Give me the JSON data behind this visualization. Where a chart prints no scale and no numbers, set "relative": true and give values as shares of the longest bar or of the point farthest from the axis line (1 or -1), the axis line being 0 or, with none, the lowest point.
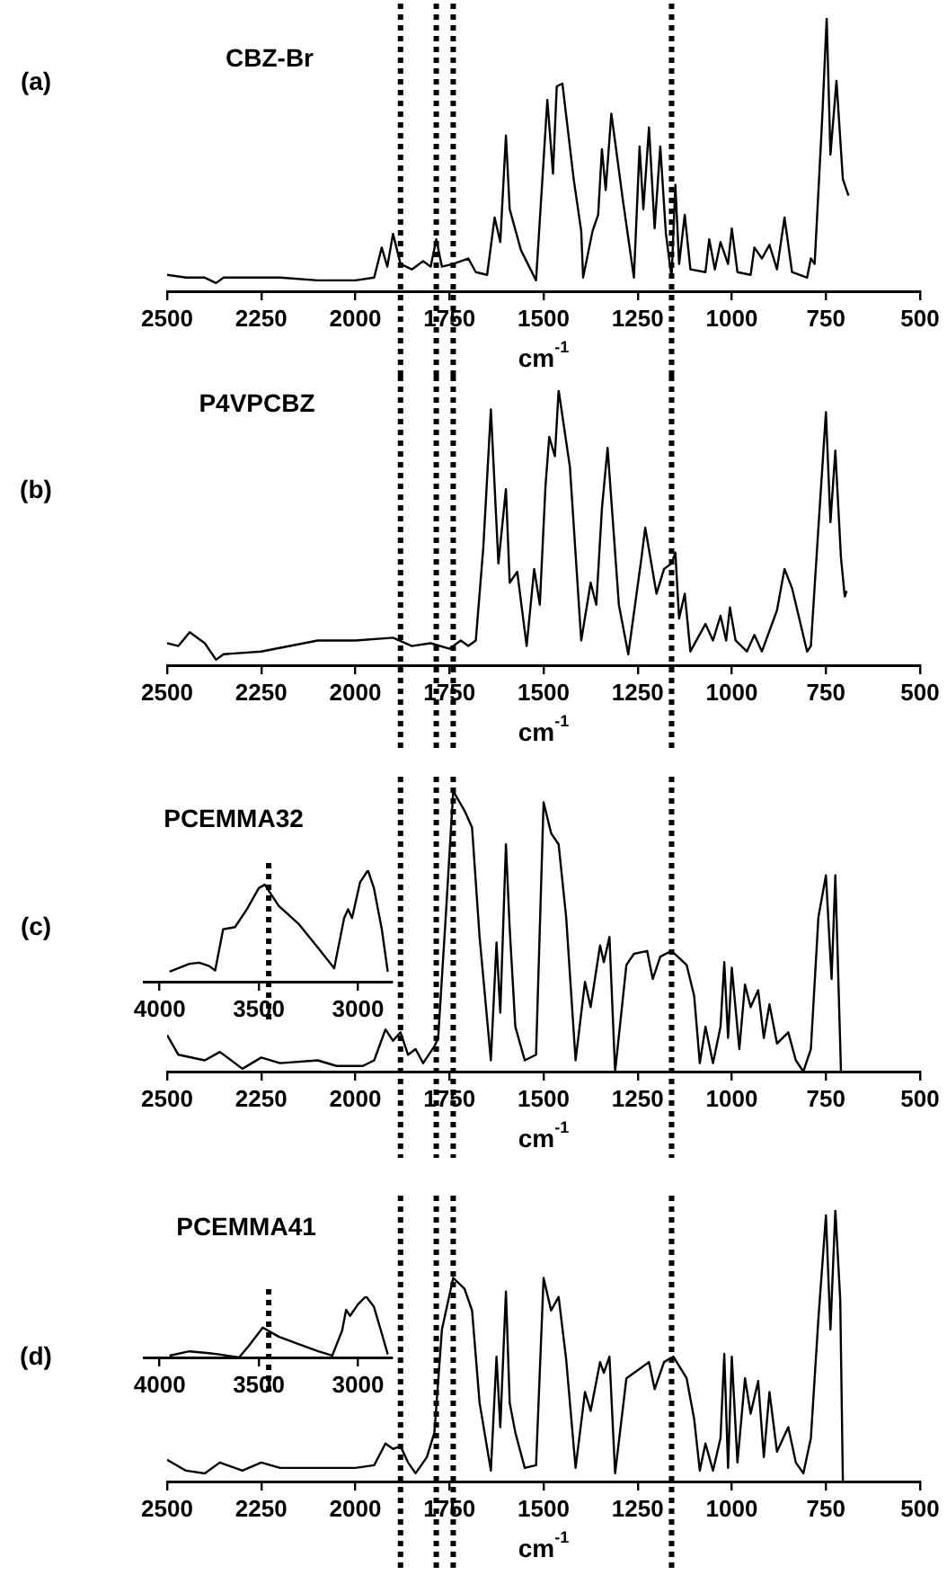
{
  "chart_data": [
    {
      "type": "line",
      "title": "CBZ-Br",
      "xlabel": "cm$^{-1}$",
      "annotations": [
        "(a)"
      ],
      "relative": true,
      "xlim": [
        2500,
        500
      ],
      "xticks": [
        2500,
        2250,
        2000,
        1750,
        1500,
        1250,
        1000,
        750,
        500
      ],
      "ref_lines": [
        {
          "axis": "x",
          "value": 1880,
          "line_style": "dotted",
          "color": "#000000"
        },
        {
          "axis": "x",
          "value": 1785,
          "line_style": "dotted",
          "color": "#000000"
        },
        {
          "axis": "x",
          "value": 1740,
          "line_style": "dotted",
          "color": "#000000"
        },
        {
          "axis": "x",
          "value": 1160,
          "line_style": "dotted",
          "color": "#000000"
        }
      ],
      "series": [
        {
          "color": "#000000",
          "x": [
            2500,
            2450,
            2400,
            2370,
            2350,
            2300,
            2200,
            2100,
            2000,
            1950,
            1930,
            1915,
            1900,
            1880,
            1850,
            1820,
            1800,
            1785,
            1770,
            1740,
            1700,
            1680,
            1650,
            1630,
            1615,
            1600,
            1590,
            1560,
            1520,
            1490,
            1475,
            1465,
            1450,
            1420,
            1400,
            1395,
            1370,
            1355,
            1345,
            1335,
            1320,
            1290,
            1260,
            1245,
            1235,
            1220,
            1205,
            1190,
            1175,
            1160,
            1150,
            1140,
            1125,
            1110,
            1070,
            1060,
            1045,
            1030,
            1010,
            1000,
            985,
            950,
            940,
            920,
            900,
            880,
            860,
            840,
            800,
            790,
            780,
            760,
            748,
            738,
            722,
            705,
            690
          ],
          "values": [
            0.06,
            0.05,
            0.05,
            0.03,
            0.05,
            0.05,
            0.05,
            0.04,
            0.04,
            0.05,
            0.16,
            0.09,
            0.21,
            0.1,
            0.08,
            0.11,
            0.09,
            0.19,
            0.09,
            0.1,
            0.12,
            0.07,
            0.06,
            0.27,
            0.18,
            0.57,
            0.3,
            0.15,
            0.04,
            0.7,
            0.43,
            0.75,
            0.76,
            0.41,
            0.22,
            0.05,
            0.22,
            0.28,
            0.52,
            0.37,
            0.65,
            0.34,
            0.05,
            0.53,
            0.3,
            0.6,
            0.23,
            0.53,
            0.21,
            0.05,
            0.39,
            0.1,
            0.28,
            0.08,
            0.07,
            0.19,
            0.08,
            0.18,
            0.1,
            0.23,
            0.07,
            0.06,
            0.16,
            0.12,
            0.17,
            0.08,
            0.27,
            0.07,
            0.05,
            0.12,
            0.1,
            0.63,
            1,
            0.5,
            0.77,
            0.41,
            0.35
          ]
        }
      ]
    },
    {
      "type": "line",
      "title": "P4VPCBZ",
      "xlabel": "cm$^{-1}$",
      "annotations": [
        "(b)"
      ],
      "relative": true,
      "xlim": [
        2500,
        500
      ],
      "xticks": [
        2500,
        2250,
        2000,
        1750,
        1500,
        1250,
        1000,
        750,
        500
      ],
      "ref_lines": [
        {
          "axis": "x",
          "value": 1880,
          "line_style": "dotted",
          "color": "#000000"
        },
        {
          "axis": "x",
          "value": 1785,
          "line_style": "dotted",
          "color": "#000000"
        },
        {
          "axis": "x",
          "value": 1740,
          "line_style": "dotted",
          "color": "#000000"
        },
        {
          "axis": "x",
          "value": 1160,
          "line_style": "dotted",
          "color": "#000000"
        }
      ],
      "series": [
        {
          "color": "#000000",
          "x": [
            2500,
            2470,
            2440,
            2400,
            2370,
            2350,
            2250,
            2100,
            2000,
            1900,
            1850,
            1800,
            1750,
            1720,
            1700,
            1680,
            1660,
            1640,
            1620,
            1600,
            1590,
            1570,
            1545,
            1525,
            1510,
            1495,
            1485,
            1470,
            1460,
            1430,
            1400,
            1375,
            1360,
            1345,
            1330,
            1300,
            1275,
            1240,
            1230,
            1200,
            1180,
            1160,
            1150,
            1140,
            1125,
            1110,
            1070,
            1050,
            1030,
            1015,
            1005,
            990,
            960,
            940,
            920,
            880,
            860,
            840,
            800,
            790,
            770,
            750,
            738,
            725,
            710,
            700,
            695
          ],
          "values": [
            0.08,
            0.07,
            0.12,
            0.08,
            0.02,
            0.04,
            0.05,
            0.09,
            0.09,
            0.1,
            0.07,
            0.08,
            0.06,
            0.09,
            0.07,
            0.09,
            0.43,
            0.93,
            0.37,
            0.64,
            0.3,
            0.34,
            0.07,
            0.35,
            0.22,
            0.65,
            0.83,
            0.76,
            1,
            0.72,
            0.09,
            0.3,
            0.22,
            0.57,
            0.79,
            0.22,
            0.04,
            0.39,
            0.5,
            0.26,
            0.35,
            0.37,
            0.41,
            0.17,
            0.26,
            0.05,
            0.15,
            0.09,
            0.18,
            0.09,
            0.21,
            0.09,
            0.05,
            0.11,
            0.05,
            0.2,
            0.35,
            0.28,
            0.05,
            0.07,
            0.5,
            0.92,
            0.52,
            0.78,
            0.39,
            0.25,
            0.27
          ]
        }
      ]
    },
    {
      "type": "line",
      "title": "PCEMMA32",
      "xlabel": "cm$^{-1}$",
      "annotations": [
        "(c)"
      ],
      "relative": true,
      "xlim": [
        2500,
        500
      ],
      "xticks": [
        2500,
        2250,
        2000,
        1750,
        1500,
        1250,
        1000,
        750,
        500
      ],
      "ref_lines": [
        {
          "axis": "x",
          "value": 1880,
          "line_style": "dotted",
          "color": "#000000"
        },
        {
          "axis": "x",
          "value": 1785,
          "line_style": "dotted",
          "color": "#000000"
        },
        {
          "axis": "x",
          "value": 1740,
          "line_style": "dotted",
          "color": "#000000"
        },
        {
          "axis": "x",
          "value": 1160,
          "line_style": "dotted",
          "color": "#000000"
        }
      ],
      "series": [
        {
          "color": "#000000",
          "x": [
            2500,
            2470,
            2400,
            2360,
            2300,
            2250,
            2200,
            2100,
            2050,
            1980,
            1950,
            1920,
            1900,
            1880,
            1860,
            1840,
            1820,
            1790,
            1780,
            1760,
            1740,
            1710,
            1690,
            1670,
            1640,
            1625,
            1615,
            1600,
            1590,
            1575,
            1550,
            1520,
            1500,
            1480,
            1460,
            1440,
            1415,
            1390,
            1375,
            1350,
            1340,
            1325,
            1310,
            1280,
            1260,
            1225,
            1210,
            1190,
            1160,
            1120,
            1100,
            1085,
            1070,
            1050,
            1030,
            1020,
            1010,
            1000,
            980,
            965,
            950,
            930,
            915,
            900,
            880,
            850,
            830,
            810,
            790,
            770,
            750,
            735,
            725,
            710
          ],
          "values": [
            0.13,
            0.06,
            0.04,
            0.07,
            0.01,
            0.05,
            0.03,
            0.04,
            0.02,
            0.02,
            0.04,
            0.15,
            0.11,
            0.14,
            0.06,
            0.08,
            0.03,
            0.09,
            0.12,
            0.55,
            1,
            0.93,
            0.87,
            0.48,
            0.04,
            0.46,
            0.21,
            0.81,
            0.51,
            0.16,
            0.04,
            0.06,
            0.96,
            0.85,
            0.81,
            0.55,
            0.04,
            0.32,
            0.23,
            0.45,
            0.39,
            0.48,
            0,
            0.38,
            0.42,
            0.43,
            0.33,
            0.41,
            0.43,
            0.38,
            0.27,
            0.03,
            0.16,
            0.03,
            0.16,
            0.39,
            0.12,
            0.37,
            0.08,
            0.31,
            0.23,
            0.29,
            0.12,
            0.24,
            0.1,
            0.14,
            0.04,
            0,
            0.08,
            0.55,
            0.7,
            0.33,
            0.7,
            0
          ]
        }
      ]
    },
    {
      "type": "line",
      "relative": true,
      "xlim": [
        4080,
        2830
      ],
      "xticks": [
        4000,
        3500,
        3000
      ],
      "ref_lines": [
        {
          "axis": "x",
          "value": 3450,
          "line_style": "dotted",
          "color": "#000000"
        }
      ],
      "series": [
        {
          "color": "#000000",
          "x": [
            3950,
            3850,
            3800,
            3750,
            3720,
            3680,
            3620,
            3560,
            3500,
            3470,
            3400,
            3300,
            3200,
            3120,
            3070,
            3050,
            3030,
            2990,
            2950,
            2920,
            2880,
            2850
          ],
          "values": [
            0.09,
            0.16,
            0.17,
            0.14,
            0.1,
            0.47,
            0.49,
            0.65,
            0.84,
            0.87,
            0.68,
            0.52,
            0.3,
            0.12,
            0.57,
            0.65,
            0.57,
            0.89,
            1,
            0.84,
            0.47,
            0.09
          ]
        }
      ]
    },
    {
      "type": "line",
      "title": "PCEMMA41",
      "xlabel": "cm$^{-1}$",
      "annotations": [
        "(d)"
      ],
      "relative": true,
      "xlim": [
        2500,
        500
      ],
      "xticks": [
        2500,
        2250,
        2000,
        1750,
        1500,
        1250,
        1000,
        750,
        500
      ],
      "ref_lines": [
        {
          "axis": "x",
          "value": 1880,
          "line_style": "dotted",
          "color": "#000000"
        },
        {
          "axis": "x",
          "value": 1785,
          "line_style": "dotted",
          "color": "#000000"
        },
        {
          "axis": "x",
          "value": 1740,
          "line_style": "dotted",
          "color": "#000000"
        },
        {
          "axis": "x",
          "value": 1160,
          "line_style": "dotted",
          "color": "#000000"
        }
      ],
      "series": [
        {
          "color": "#000000",
          "x": [
            2500,
            2450,
            2400,
            2360,
            2300,
            2250,
            2200,
            2100,
            2000,
            1950,
            1920,
            1900,
            1880,
            1860,
            1840,
            1810,
            1790,
            1770,
            1740,
            1710,
            1690,
            1670,
            1640,
            1625,
            1615,
            1600,
            1590,
            1575,
            1550,
            1520,
            1500,
            1480,
            1460,
            1440,
            1415,
            1390,
            1375,
            1350,
            1340,
            1325,
            1310,
            1280,
            1250,
            1220,
            1205,
            1180,
            1155,
            1120,
            1100,
            1085,
            1070,
            1050,
            1030,
            1020,
            1010,
            1000,
            985,
            965,
            950,
            930,
            915,
            900,
            880,
            850,
            830,
            810,
            790,
            770,
            750,
            738,
            725,
            712,
            705
          ],
          "values": [
            0.08,
            0.04,
            0.03,
            0.07,
            0.04,
            0.07,
            0.05,
            0.05,
            0.05,
            0.06,
            0.14,
            0.12,
            0.13,
            0.07,
            0.03,
            0.09,
            0.18,
            0.56,
            0.75,
            0.71,
            0.63,
            0.29,
            0.04,
            0.46,
            0.2,
            0.7,
            0.29,
            0.18,
            0.05,
            0.06,
            0.75,
            0.63,
            0.68,
            0.45,
            0.05,
            0.33,
            0.26,
            0.44,
            0.4,
            0.46,
            0.03,
            0.38,
            0.41,
            0.44,
            0.34,
            0.44,
            0.46,
            0.38,
            0.23,
            0.04,
            0.14,
            0.04,
            0.16,
            0.47,
            0.05,
            0.46,
            0.07,
            0.38,
            0.25,
            0.37,
            0.09,
            0.33,
            0.11,
            0.2,
            0.07,
            0.03,
            0.16,
            0.6,
            0.98,
            0.56,
            1,
            0.67,
            0
          ]
        }
      ]
    },
    {
      "type": "line",
      "relative": true,
      "xlim": [
        4080,
        2830
      ],
      "xticks": [
        4000,
        3500,
        3000
      ],
      "ref_lines": [
        {
          "axis": "x",
          "value": 3450,
          "line_style": "dotted",
          "color": "#000000"
        }
      ],
      "series": [
        {
          "color": "#000000",
          "x": [
            3950,
            3850,
            3750,
            3700,
            3600,
            3550,
            3480,
            3400,
            3300,
            3200,
            3130,
            3080,
            3060,
            3040,
            3000,
            2960,
            2920,
            2880,
            2850
          ],
          "values": [
            0.03,
            0.1,
            0.07,
            0.05,
            0,
            0.19,
            0.49,
            0.34,
            0.22,
            0.1,
            0.03,
            0.44,
            0.78,
            0.68,
            0.87,
            1,
            0.83,
            0.39,
            0.05
          ]
        }
      ]
    }
  ]
}
